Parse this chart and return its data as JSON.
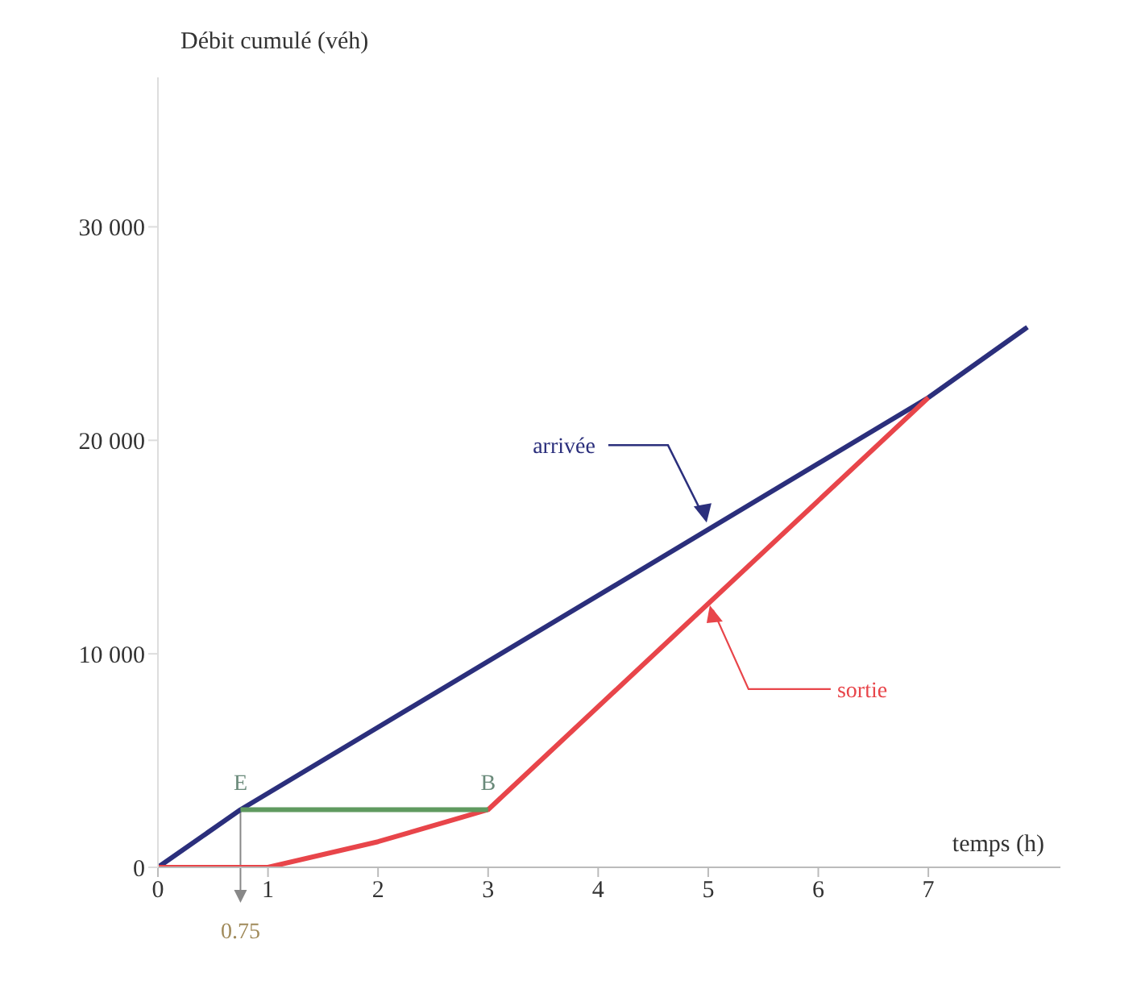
{
  "chart_data": {
    "type": "line",
    "xlabel": "temps (h)",
    "ylabel": "Débit cumulé (véh)",
    "xlim": [
      0,
      8.2
    ],
    "xticks": [
      0,
      1,
      2,
      3,
      4,
      5,
      6,
      7
    ],
    "ylim": [
      0,
      37000
    ],
    "yticks": [
      0,
      {
        "value": 10000,
        "label": "10 000"
      },
      {
        "value": 20000,
        "label": "20 000"
      },
      {
        "value": 30000,
        "label": "30 000"
      }
    ],
    "marker": "none",
    "line_style": "solid",
    "series": [
      {
        "color": "#2b2f7c",
        "x": [
          0,
          0.75,
          7,
          7.9
        ],
        "values": [
          0,
          2700,
          22000,
          25300
        ]
      },
      {
        "color": "#e8454a",
        "x": [
          0,
          1,
          2,
          3,
          7
        ],
        "values": [
          0,
          0,
          1200,
          2700,
          22000
        ]
      },
      {
        "color": "#5f9a5f",
        "x": [
          0.75,
          3
        ],
        "values": [
          2700,
          2700
        ]
      }
    ],
    "annotations": [
      {
        "text": "E",
        "x": 0.75,
        "y": 2700
      },
      {
        "text": "B",
        "x": 3,
        "y": 2700
      },
      {
        "text": "0.75",
        "x": 0.75,
        "y": 0
      },
      {
        "text": "arrivée",
        "x": 5,
        "y": 16000
      },
      {
        "text": "sortie",
        "x": 5,
        "y": 12500
      }
    ]
  }
}
